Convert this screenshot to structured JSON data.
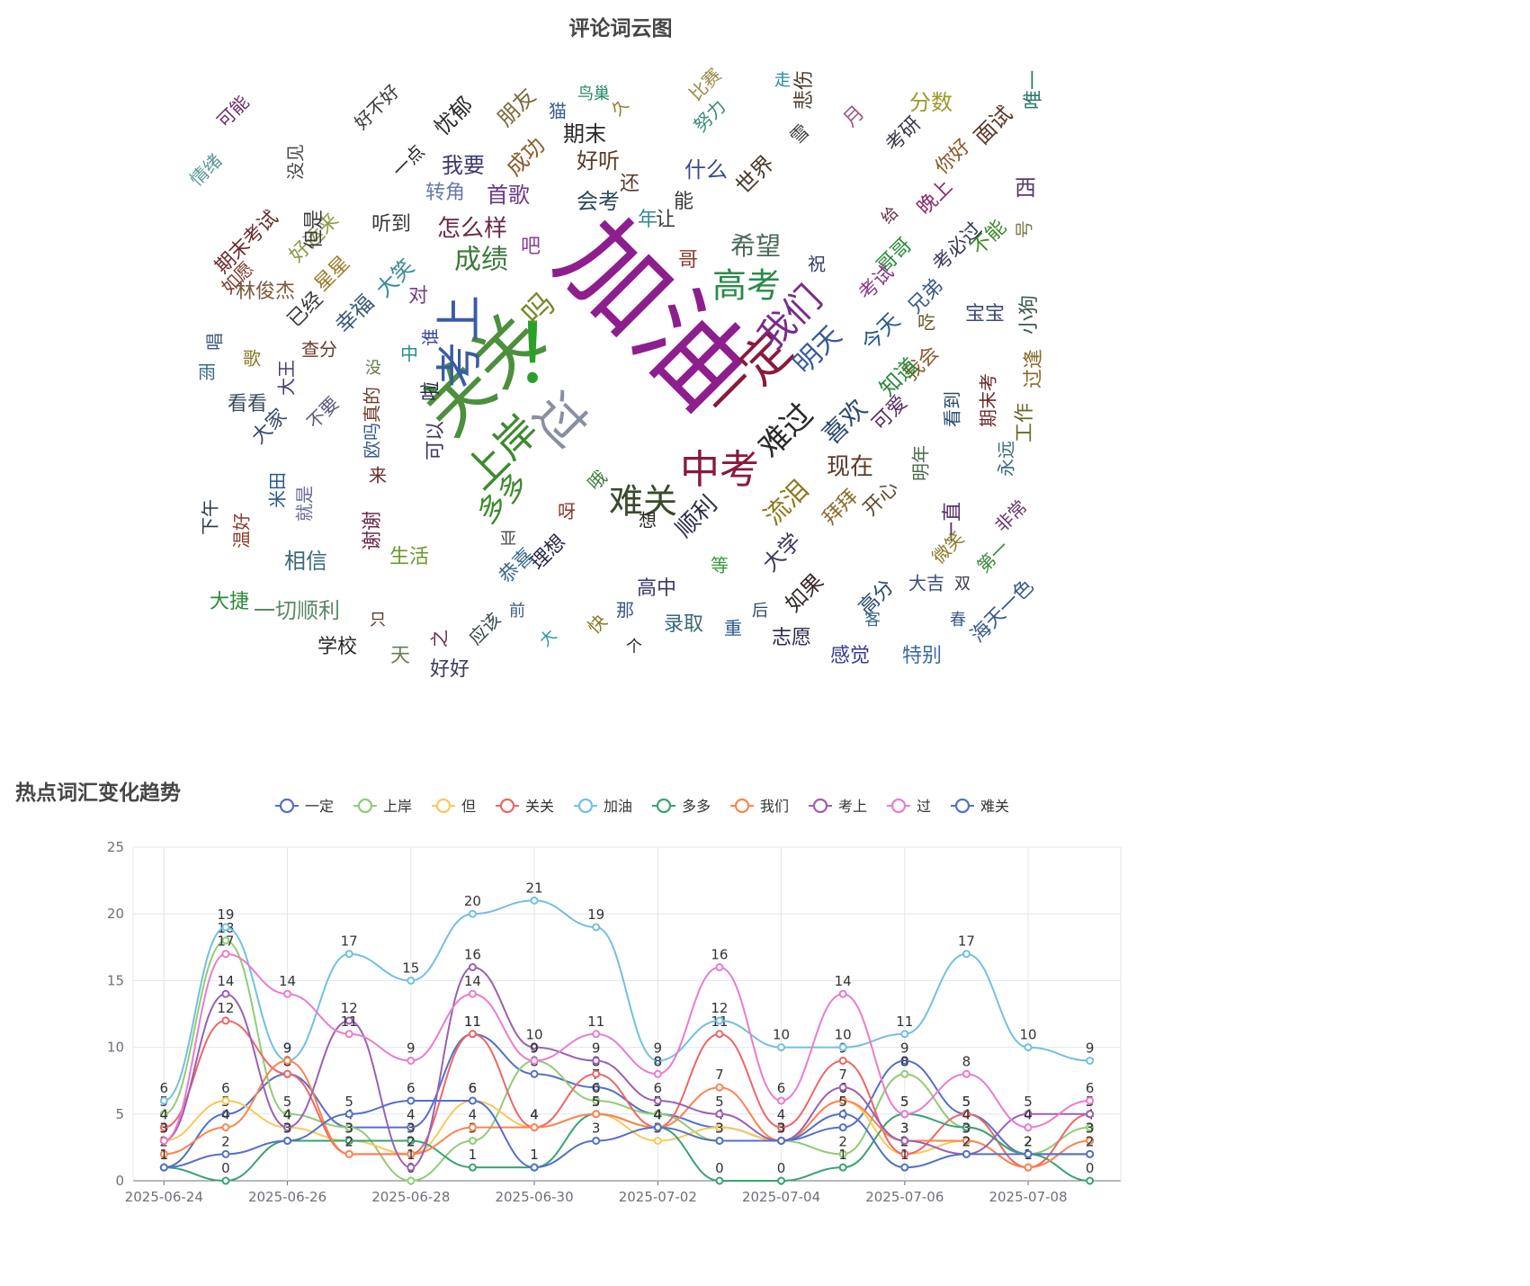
{
  "wordcloud": {
    "title": "评论词云图",
    "words": [
      {
        "t": "加油",
        "c": "#8e1e8e"
      },
      {
        "t": "关关",
        "c": "#4c8f3c"
      },
      {
        "t": "！",
        "c": "#2aa02a"
      },
      {
        "t": "过",
        "c": "#8a8fa0"
      },
      {
        "t": "上岸",
        "c": "#3e8a2e"
      },
      {
        "t": "考上",
        "c": "#3b5aa6"
      },
      {
        "t": "一定",
        "c": "#8a1a3a"
      },
      {
        "t": "中考",
        "c": "#8a1a3a"
      },
      {
        "t": "难关",
        "c": "#3a4a2a"
      },
      {
        "t": "我们",
        "c": "#7a2a8a"
      },
      {
        "t": "高考",
        "c": "#2a8a4a"
      },
      {
        "t": "难过",
        "c": "#2a2a2a"
      },
      {
        "t": "多多",
        "c": "#3e8a2e"
      },
      {
        "t": "吗",
        "c": "#7a8a2a"
      },
      {
        "t": "成绩",
        "c": "#3a7a3a"
      },
      {
        "t": "现在",
        "c": "#5a3a2a"
      },
      {
        "t": "流泪",
        "c": "#8a7a1a"
      },
      {
        "t": "明天",
        "c": "#3a5a9a"
      },
      {
        "t": "喜欢",
        "c": "#2a4a6a"
      },
      {
        "t": "希望",
        "c": "#4a6a5a"
      },
      {
        "t": "顺利",
        "c": "#2a2a4a"
      },
      {
        "t": "怎么样",
        "c": "#6a2a4a"
      },
      {
        "t": "首歌",
        "c": "#6a3a8a"
      },
      {
        "t": "会考",
        "c": "#2a4a5a"
      },
      {
        "t": "好听",
        "c": "#5a3a2a"
      },
      {
        "t": "期末",
        "c": "#2a2a2a"
      },
      {
        "t": "成功",
        "c": "#8a5a2a"
      },
      {
        "t": "我要",
        "c": "#3a3a6a"
      },
      {
        "t": "转角",
        "c": "#6a7aaa"
      },
      {
        "t": "朋友",
        "c": "#7a6a3a"
      },
      {
        "t": "忧郁",
        "c": "#2a2a2a"
      },
      {
        "t": "什么",
        "c": "#3a4a8a"
      },
      {
        "t": "世界",
        "c": "#4a3a2a"
      },
      {
        "t": "悲伤",
        "c": "#4a3a2a"
      },
      {
        "t": "分数",
        "c": "#9a9a2a"
      },
      {
        "t": "考研",
        "c": "#3a3a4a"
      },
      {
        "t": "面试",
        "c": "#5a3a2a"
      },
      {
        "t": "唯一",
        "c": "#2a7a6a"
      },
      {
        "t": "你好",
        "c": "#8a5a2a"
      },
      {
        "t": "晚上",
        "c": "#8a2a6a"
      },
      {
        "t": "西",
        "c": "#5a3a6a"
      },
      {
        "t": "号",
        "c": "#7a7a4a"
      },
      {
        "t": "不能",
        "c": "#3a8a2a"
      },
      {
        "t": "考必过",
        "c": "#3a3a5a"
      },
      {
        "t": "哥哥",
        "c": "#2a8a3a"
      },
      {
        "t": "兄弟",
        "c": "#3a5a8a"
      },
      {
        "t": "考试",
        "c": "#8a3a8a"
      },
      {
        "t": "宝宝",
        "c": "#3a4a7a"
      },
      {
        "t": "小狗",
        "c": "#3a5a4a"
      },
      {
        "t": "过逢",
        "c": "#8a6a2a"
      },
      {
        "t": "工作",
        "c": "#6a6a2a"
      },
      {
        "t": "永远",
        "c": "#3a6a7a"
      },
      {
        "t": "期末考",
        "c": "#6a2a2a"
      },
      {
        "t": "看到",
        "c": "#2a4a6a"
      },
      {
        "t": "我会",
        "c": "#8a5a2a"
      },
      {
        "t": "知道",
        "c": "#2a8a3a"
      },
      {
        "t": "今天",
        "c": "#2a5a8a"
      },
      {
        "t": "可爱",
        "c": "#5a2a6a"
      },
      {
        "t": "开心",
        "c": "#5a4a2a"
      },
      {
        "t": "拜拜",
        "c": "#8a6a2a"
      },
      {
        "t": "大学",
        "c": "#3a3a5a"
      },
      {
        "t": "如果",
        "c": "#3a2a2a"
      },
      {
        "t": "志愿",
        "c": "#2a2a4a"
      },
      {
        "t": "感觉",
        "c": "#3a3a8a"
      },
      {
        "t": "特别",
        "c": "#3a6a9a"
      },
      {
        "t": "高分",
        "c": "#2a4a6a"
      },
      {
        "t": "大家",
        "c": "#3a4a6a"
      },
      {
        "t": "看看",
        "c": "#3a4a5a"
      },
      {
        "t": "幸福",
        "c": "#3a5a7a"
      },
      {
        "t": "大笑",
        "c": "#3a8a9a"
      },
      {
        "t": "听到",
        "c": "#3a3a3a"
      },
      {
        "t": "好运来",
        "c": "#8a9a4a"
      },
      {
        "t": "期末考试",
        "c": "#6a2a2a"
      },
      {
        "t": "林俊杰",
        "c": "#7a5a3a"
      },
      {
        "t": "生活",
        "c": "#6a9a2a"
      },
      {
        "t": "相信",
        "c": "#3a6a7a"
      },
      {
        "t": "一切顺利",
        "c": "#5a8a6a"
      },
      {
        "t": "大捷",
        "c": "#2a8a3a"
      },
      {
        "t": "学校",
        "c": "#2a2a2a"
      },
      {
        "t": "好好",
        "c": "#3a3a5a"
      },
      {
        "t": "录取",
        "c": "#3a6a7a"
      },
      {
        "t": "高中",
        "c": "#3a3a6a"
      },
      {
        "t": "理想",
        "c": "#2a2a4a"
      },
      {
        "t": "恭喜",
        "c": "#3a6a8a"
      },
      {
        "t": "谢谢",
        "c": "#6a2a4a"
      },
      {
        "t": "温好",
        "c": "#8a3a2a"
      },
      {
        "t": "下午",
        "c": "#2a3a4a"
      },
      {
        "t": "雨",
        "c": "#3a6a8a"
      },
      {
        "t": "唱",
        "c": "#3a5a7a"
      },
      {
        "t": "歌",
        "c": "#8a7a2a"
      },
      {
        "t": "如愿",
        "c": "#7a3a2a"
      },
      {
        "t": "情绪",
        "c": "#5a9a9a"
      },
      {
        "t": "可能",
        "c": "#6a2a6a"
      },
      {
        "t": "没见",
        "c": "#4a4a4a"
      },
      {
        "t": "好不好",
        "c": "#3a3a3a"
      },
      {
        "t": "一点",
        "c": "#2a2a2a"
      },
      {
        "t": "星星",
        "c": "#9a7a2a"
      },
      {
        "t": "但是",
        "c": "#3a3a3a"
      },
      {
        "t": "已经",
        "c": "#3a3a3a"
      },
      {
        "t": "查分",
        "c": "#6a3a2a"
      },
      {
        "t": "大王",
        "c": "#4a3a6a"
      },
      {
        "t": "不要",
        "c": "#5a5a7a"
      },
      {
        "t": "真的",
        "c": "#6a3a2a"
      },
      {
        "t": "欧吗",
        "c": "#3a5a8a"
      },
      {
        "t": "米田",
        "c": "#2a5a8a"
      },
      {
        "t": "就是",
        "c": "#6a6a9a"
      },
      {
        "t": "春",
        "c": "#3a5a8a"
      },
      {
        "t": "海天一色",
        "c": "#3a5a8a"
      },
      {
        "t": "第一",
        "c": "#3a8a3a"
      },
      {
        "t": "非常",
        "c": "#6a3a6a"
      },
      {
        "t": "双",
        "c": "#3a3a4a"
      },
      {
        "t": "大吉",
        "c": "#3a4a7a"
      },
      {
        "t": "一直",
        "c": "#5a2a6a"
      },
      {
        "t": "明年",
        "c": "#4a6a4a"
      },
      {
        "t": "微笑",
        "c": "#8a7a2a"
      },
      {
        "t": "应该",
        "c": "#3a4a4a"
      },
      {
        "t": "天",
        "c": "#6a7a5a"
      },
      {
        "t": "之",
        "c": "#6a2a4a"
      },
      {
        "t": "只",
        "c": "#5a3a2a"
      },
      {
        "t": "前",
        "c": "#3a5a7a"
      },
      {
        "t": "大",
        "c": "#2a9a9a"
      },
      {
        "t": "快",
        "c": "#8a7a2a"
      },
      {
        "t": "那",
        "c": "#3a5a8a"
      },
      {
        "t": "个",
        "c": "#2a2a2a"
      },
      {
        "t": "重",
        "c": "#2a5a8a"
      },
      {
        "t": "后",
        "c": "#2a4a6a"
      },
      {
        "t": "等",
        "c": "#3a9a3a"
      },
      {
        "t": "客",
        "c": "#3a6a8a"
      },
      {
        "t": "祝",
        "c": "#3a3a6a"
      },
      {
        "t": "给",
        "c": "#6a2a4a"
      },
      {
        "t": "吧",
        "c": "#8a3a9a"
      },
      {
        "t": "对",
        "c": "#7a3a8a"
      },
      {
        "t": "谁",
        "c": "#3a4a9a"
      },
      {
        "t": "啦",
        "c": "#2a2a4a"
      },
      {
        "t": "呀",
        "c": "#8a3a2a"
      },
      {
        "t": "想",
        "c": "#2a2a2a"
      },
      {
        "t": "吃",
        "c": "#6a5a2a"
      },
      {
        "t": "哦",
        "c": "#3a7a3a"
      },
      {
        "t": "哥",
        "c": "#8a3a2a"
      },
      {
        "t": "年",
        "c": "#3a8a9a"
      },
      {
        "t": "还",
        "c": "#5a3a2a"
      },
      {
        "t": "让",
        "c": "#3a3a3a"
      },
      {
        "t": "能",
        "c": "#3a3a3a"
      },
      {
        "t": "中",
        "c": "#2a8a9a"
      },
      {
        "t": "来",
        "c": "#6a2a2a"
      },
      {
        "t": "可以",
        "c": "#3a3a6a"
      },
      {
        "t": "努力",
        "c": "#3a8a7a"
      },
      {
        "t": "比赛",
        "c": "#9a8a4a"
      },
      {
        "t": "雪",
        "c": "#3a3a3a"
      },
      {
        "t": "走",
        "c": "#2a8a9a"
      },
      {
        "t": "猫",
        "c": "#3a5a8a"
      },
      {
        "t": "久",
        "c": "#8a7a2a"
      },
      {
        "t": "鸟巢",
        "c": "#2a8a6a"
      },
      {
        "t": "月",
        "c": "#9a5a8a"
      },
      {
        "t": "没",
        "c": "#6a7a4a"
      },
      {
        "t": "亚",
        "c": "#4a4a4a"
      }
    ]
  },
  "chart_data": {
    "type": "line",
    "title": "热点词汇变化趋势",
    "xlabel": "",
    "ylabel": "",
    "ylim": [
      0,
      25
    ],
    "yticks": [
      "0",
      "5",
      "10",
      "15",
      "20",
      "25"
    ],
    "x": [
      "2025-06-24",
      "2025-06-25",
      "2025-06-26",
      "2025-06-27",
      "2025-06-28",
      "2025-06-29",
      "2025-06-30",
      "2025-07-01",
      "2025-07-02",
      "2025-07-03",
      "2025-07-04",
      "2025-07-05",
      "2025-07-06",
      "2025-07-07",
      "2025-07-08",
      "2025-07-09"
    ],
    "xticks": [
      "2025-06-24",
      "2025-06-26",
      "2025-06-28",
      "2025-06-30",
      "2025-07-02",
      "2025-07-04",
      "2025-07-06",
      "2025-07-08"
    ],
    "grid": true,
    "legend_position": "top",
    "series": [
      {
        "name": "一定",
        "color": "#5470c6",
        "values": [
          1,
          5,
          8,
          4,
          4,
          11,
          8,
          7,
          5,
          4,
          3,
          4,
          9,
          5,
          2,
          2
        ]
      },
      {
        "name": "上岸",
        "color": "#91cc75",
        "values": [
          5,
          18,
          5,
          4,
          0,
          3,
          9,
          6,
          5,
          3,
          3,
          2,
          8,
          4,
          2,
          4
        ]
      },
      {
        "name": "但",
        "color": "#fac858",
        "values": [
          3,
          6,
          4,
          3,
          2,
          6,
          4,
          5,
          3,
          4,
          3,
          6,
          2,
          3,
          1,
          3
        ]
      },
      {
        "name": "关关",
        "color": "#ee6666",
        "values": [
          4,
          12,
          8,
          2,
          2,
          11,
          4,
          8,
          4,
          11,
          4,
          9,
          2,
          5,
          1,
          5
        ]
      },
      {
        "name": "加油",
        "color": "#73c0de",
        "values": [
          6,
          19,
          9,
          17,
          15,
          20,
          21,
          19,
          9,
          12,
          10,
          10,
          11,
          17,
          10,
          9
        ]
      },
      {
        "name": "多多",
        "color": "#3ba272",
        "values": [
          1,
          0,
          3,
          3,
          3,
          1,
          1,
          5,
          4,
          0,
          0,
          1,
          5,
          4,
          2,
          0
        ]
      },
      {
        "name": "我们",
        "color": "#fc8452",
        "values": [
          2,
          4,
          9,
          2,
          2,
          4,
          4,
          5,
          4,
          7,
          3,
          6,
          3,
          3,
          1,
          3
        ]
      },
      {
        "name": "考上",
        "color": "#9a60b4",
        "values": [
          3,
          14,
          4,
          12,
          1,
          16,
          10,
          9,
          6,
          5,
          3,
          7,
          3,
          2,
          5,
          5
        ]
      },
      {
        "name": "过",
        "color": "#ea7ccc",
        "values": [
          3,
          17,
          14,
          11,
          9,
          14,
          9,
          11,
          8,
          16,
          6,
          14,
          5,
          8,
          4,
          6
        ]
      },
      {
        "name": "难关",
        "color": "#5470c6",
        "values": [
          1,
          2,
          3,
          5,
          6,
          6,
          1,
          3,
          4,
          3,
          3,
          5,
          1,
          2,
          2,
          2
        ]
      }
    ]
  }
}
